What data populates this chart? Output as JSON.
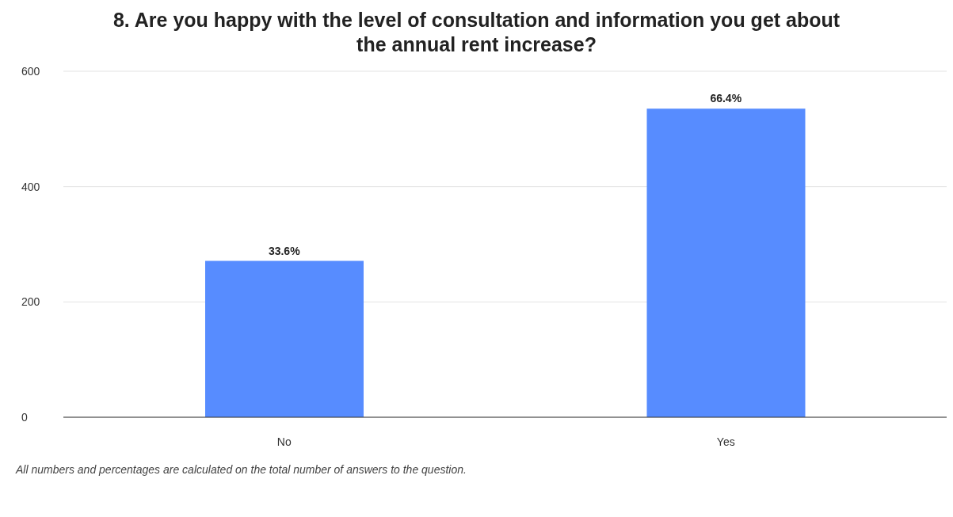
{
  "chart_data": {
    "type": "bar",
    "title": "8. Are you happy with the level of consultation and information you get about the annual rent increase?",
    "categories": [
      "No",
      "Yes"
    ],
    "values": [
      271,
      535
    ],
    "color": "#578cff",
    "ylim": [
      0,
      600
    ],
    "yticks": [
      0,
      200,
      400,
      600
    ],
    "grid": "y",
    "annotations": [
      {
        "text": "33.6%",
        "x": "No",
        "y": 271
      },
      {
        "text": "66.4%",
        "x": "Yes",
        "y": 535
      },
      "All numbers and percentages are calculated on the total number of answers to the question."
    ]
  }
}
